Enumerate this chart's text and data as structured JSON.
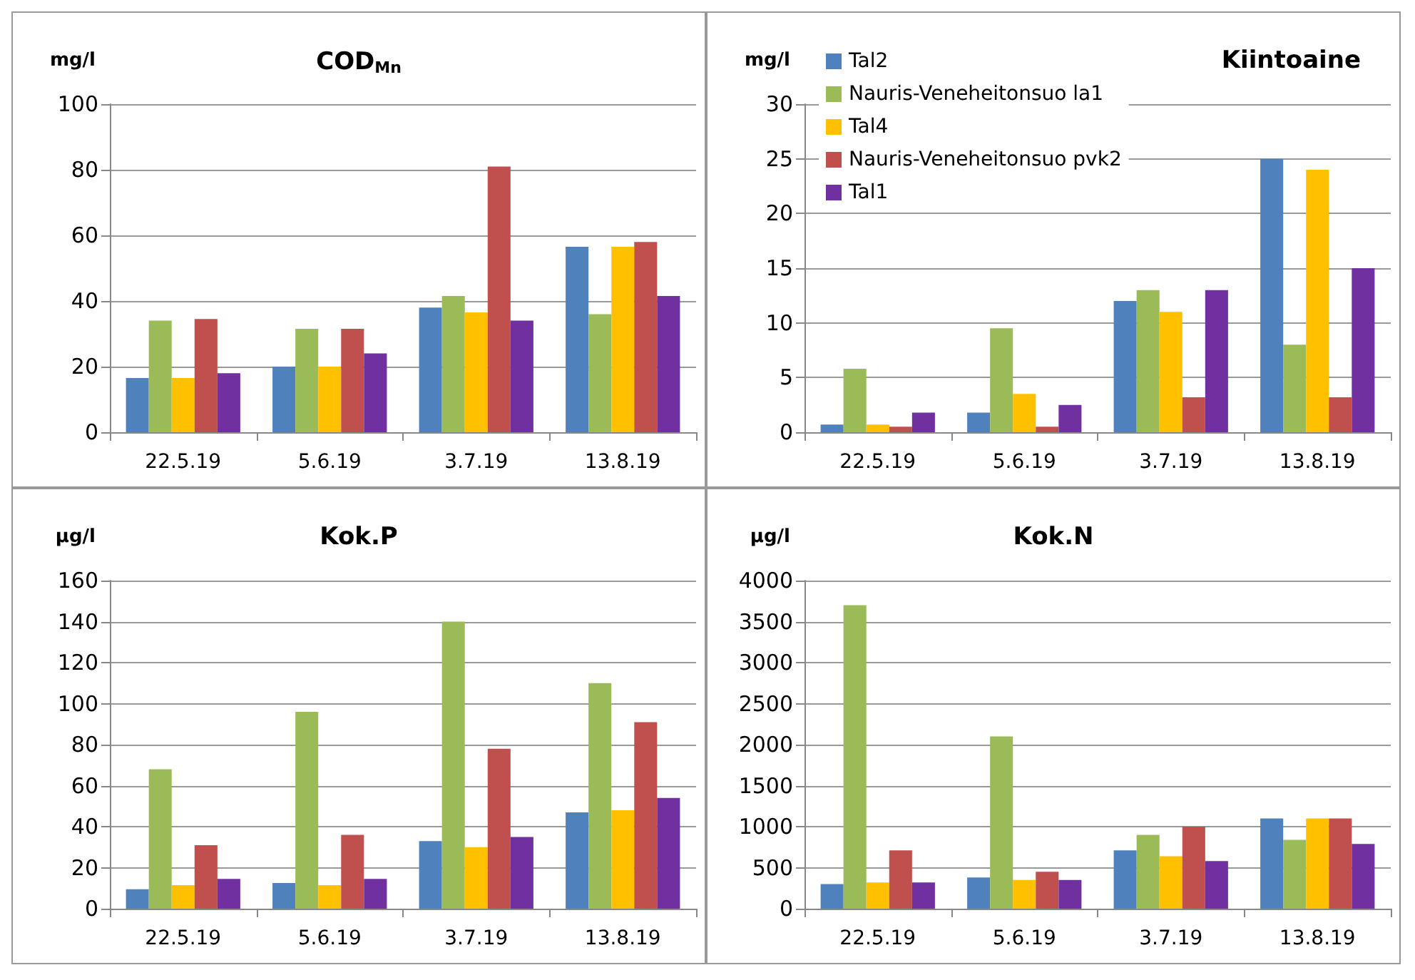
{
  "chart_data": [
    {
      "type": "bar",
      "title": "COD$_{Mn}$",
      "ylabel": "mg/l",
      "categories": [
        "22.5.19",
        "5.6.19",
        "3.7.19",
        "13.8.19"
      ],
      "ylim": [
        0,
        100
      ],
      "yticks": [
        0,
        20,
        40,
        60,
        80,
        100
      ],
      "grid": "y",
      "legend": false,
      "series": [
        {
          "color": "#4f81bd",
          "values": [
            16.5,
            20,
            38,
            56.5
          ]
        },
        {
          "color": "#9bbb59",
          "values": [
            34,
            31.5,
            41.5,
            36
          ]
        },
        {
          "color": "#ffc000",
          "values": [
            16.5,
            20,
            36.5,
            56.5
          ]
        },
        {
          "color": "#c0504d",
          "values": [
            34.5,
            31.5,
            81,
            58
          ]
        },
        {
          "color": "#7030a0",
          "values": [
            18,
            24,
            34,
            41.5
          ]
        }
      ]
    },
    {
      "type": "bar",
      "title": "Kiintoaine",
      "ylabel": "mg/l",
      "categories": [
        "22.5.19",
        "5.6.19",
        "3.7.19",
        "13.8.19"
      ],
      "ylim": [
        0,
        30
      ],
      "yticks": [
        0,
        5,
        10,
        15,
        20,
        25,
        30
      ],
      "grid": "y",
      "legend": "top left",
      "series": [
        {
          "name": "Tal2",
          "color": "#4f81bd",
          "values": [
            0.7,
            1.8,
            12,
            25
          ]
        },
        {
          "name": "Nauris-Veneheitonsuo la1",
          "color": "#9bbb59",
          "values": [
            5.8,
            9.5,
            13,
            8
          ]
        },
        {
          "name": "Tal4",
          "color": "#ffc000",
          "values": [
            0.7,
            3.5,
            11,
            24
          ]
        },
        {
          "name": "Nauris-Veneheitonsuo pvk2",
          "color": "#c0504d",
          "values": [
            0.5,
            0.5,
            3.2,
            3.2
          ]
        },
        {
          "name": "Tal1",
          "color": "#7030a0",
          "values": [
            1.8,
            2.5,
            13,
            15
          ]
        }
      ]
    },
    {
      "type": "bar",
      "title": "Kok.P",
      "ylabel": "µg/l",
      "categories": [
        "22.5.19",
        "5.6.19",
        "3.7.19",
        "13.8.19"
      ],
      "ylim": [
        0,
        160
      ],
      "yticks": [
        0,
        20,
        40,
        60,
        80,
        100,
        120,
        140,
        160
      ],
      "grid": "y",
      "legend": false,
      "series": [
        {
          "color": "#4f81bd",
          "values": [
            9.5,
            12.5,
            33,
            47
          ]
        },
        {
          "color": "#9bbb59",
          "values": [
            68,
            96,
            140,
            110
          ]
        },
        {
          "color": "#ffc000",
          "values": [
            11.5,
            11.5,
            30,
            48
          ]
        },
        {
          "color": "#c0504d",
          "values": [
            31,
            36,
            78,
            91
          ]
        },
        {
          "color": "#7030a0",
          "values": [
            14.5,
            14.5,
            35,
            54
          ]
        }
      ]
    },
    {
      "type": "bar",
      "title": "Kok.N",
      "ylabel": "µg/l",
      "categories": [
        "22.5.19",
        "5.6.19",
        "3.7.19",
        "13.8.19"
      ],
      "ylim": [
        0,
        4000
      ],
      "yticks": [
        0,
        500,
        1000,
        1500,
        2000,
        2500,
        3000,
        3500,
        4000
      ],
      "grid": "y",
      "legend": false,
      "series": [
        {
          "color": "#4f81bd",
          "values": [
            300,
            380,
            710,
            1100
          ]
        },
        {
          "color": "#9bbb59",
          "values": [
            3700,
            2100,
            900,
            840
          ]
        },
        {
          "color": "#ffc000",
          "values": [
            320,
            350,
            640,
            1100
          ]
        },
        {
          "color": "#c0504d",
          "values": [
            710,
            450,
            1000,
            1100
          ]
        },
        {
          "color": "#7030a0",
          "values": [
            320,
            350,
            580,
            790
          ]
        }
      ]
    }
  ]
}
